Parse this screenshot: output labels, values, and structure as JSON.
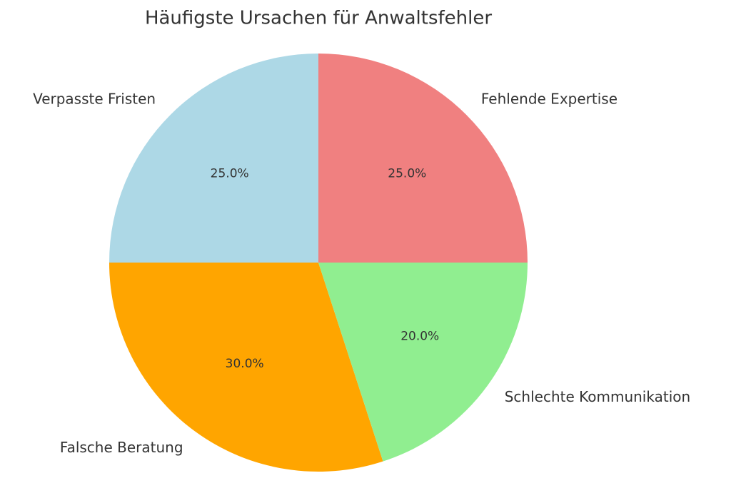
{
  "chart_data": {
    "type": "pie",
    "title": "Häufigste Ursachen für Anwaltsfehler",
    "categories": [
      "Verpasste Fristen",
      "Falsche Beratung",
      "Schlechte Kommunikation",
      "Fehlende Expertise"
    ],
    "values": [
      25,
      30,
      20,
      25
    ],
    "value_labels": [
      "25.0%",
      "30.0%",
      "20.0%",
      "25.0%"
    ],
    "colors": [
      "#add8e6",
      "#ffa500",
      "#90ee90",
      "#f08080"
    ],
    "start_angle": 90
  }
}
